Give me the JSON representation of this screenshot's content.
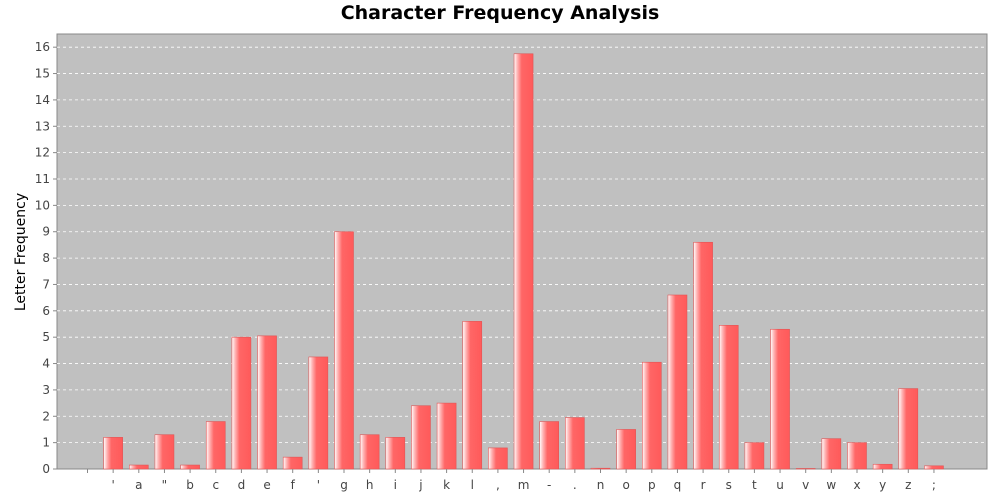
{
  "chart_data": {
    "type": "bar",
    "title": "Character Frequency Analysis",
    "xlabel": "",
    "ylabel": "Letter Frequency",
    "ylim": [
      0,
      16.5
    ],
    "yticks": [
      0,
      1,
      2,
      3,
      4,
      5,
      6,
      7,
      8,
      9,
      10,
      11,
      12,
      13,
      14,
      15,
      16
    ],
    "grid": true,
    "legend": "none",
    "colors": {
      "bar": "#ff6666",
      "plot_bg": "#c0c0c0",
      "grid": "#ffffff"
    },
    "categories": [
      "",
      "'",
      "a",
      "\"",
      "b",
      "c",
      "d",
      "e",
      "f",
      "'",
      "g",
      "h",
      "i",
      "j",
      "k",
      "l",
      ",",
      "m",
      "-",
      ".",
      "n",
      "o",
      "p",
      "q",
      "r",
      "s",
      "t",
      "u",
      "v",
      "w",
      "x",
      "y",
      "z",
      ";"
    ],
    "values": [
      0,
      1.2,
      0.15,
      1.3,
      0.15,
      1.8,
      5.0,
      5.05,
      0.45,
      4.25,
      9.0,
      1.3,
      1.2,
      2.4,
      2.5,
      5.6,
      0.8,
      15.75,
      1.8,
      1.95,
      0.03,
      1.5,
      4.05,
      6.6,
      8.6,
      5.45,
      1.0,
      5.3,
      0.02,
      1.15,
      1.0,
      0.18,
      3.05,
      0.12
    ]
  }
}
